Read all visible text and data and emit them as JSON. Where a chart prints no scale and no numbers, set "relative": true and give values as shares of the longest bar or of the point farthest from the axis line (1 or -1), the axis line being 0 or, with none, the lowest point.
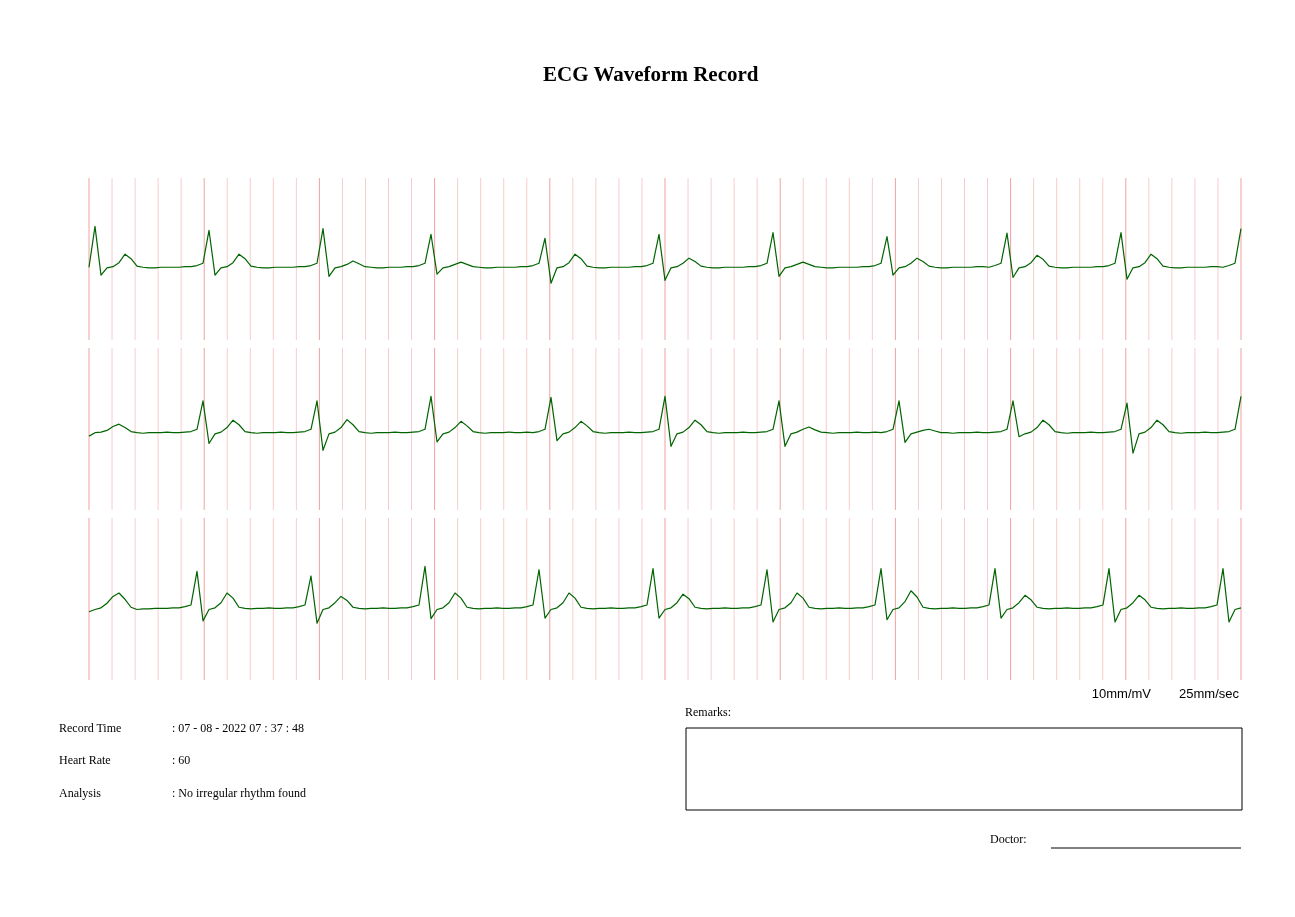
{
  "chart_data": [
    {
      "type": "line",
      "title": "ECG Waveform Record",
      "relative": true,
      "grid": "x",
      "categories": [
        null,
        null,
        null,
        null,
        null,
        null,
        null,
        null,
        null,
        null,
        null,
        null,
        null,
        null,
        null,
        null,
        null,
        null,
        null,
        null,
        null,
        null,
        null,
        null,
        null,
        null,
        null,
        null,
        null,
        null,
        null,
        null,
        null,
        null,
        null,
        null,
        null,
        null,
        null,
        null,
        null,
        null,
        null,
        null,
        null,
        null,
        null,
        null,
        null,
        null,
        null,
        null,
        null,
        null,
        null,
        null,
        null,
        null,
        null,
        null,
        null,
        null,
        null,
        null,
        null,
        null,
        null,
        null,
        null,
        null,
        null,
        null,
        null,
        null,
        null,
        null,
        null,
        null,
        null,
        null,
        null,
        null,
        null,
        null,
        null,
        null,
        null,
        null,
        null,
        null,
        null,
        null,
        null,
        null,
        null,
        null,
        null,
        null,
        null,
        null,
        null,
        null,
        null,
        null,
        null,
        null,
        null,
        null,
        null,
        null,
        null,
        null,
        null,
        null,
        null,
        null,
        null,
        null,
        null,
        null,
        null,
        null,
        null,
        null,
        null,
        null,
        null,
        null,
        null,
        null,
        null,
        null,
        null,
        null,
        null,
        null,
        null,
        null,
        null,
        null,
        null,
        null,
        null,
        null,
        null,
        null,
        null,
        null,
        null,
        null,
        null,
        null,
        null,
        null,
        null,
        null,
        null,
        null,
        null,
        null,
        null,
        null,
        null,
        null,
        null,
        null,
        null,
        null,
        null,
        null,
        null,
        null,
        null,
        null,
        null,
        null,
        null,
        null,
        null,
        null,
        null,
        null,
        null,
        null,
        null,
        null,
        null,
        null,
        null,
        null,
        null,
        null,
        null
      ],
      "series": [
        {
          "color": "#006400",
          "values": [
            0.28,
            1.0,
            0.14,
            0.27,
            0.29,
            0.36,
            0.51,
            0.43,
            0.3,
            0.28,
            0.27,
            0.27,
            0.28,
            0.28,
            0.28,
            0.28,
            0.29,
            0.29,
            0.31,
            0.35,
            0.93,
            0.14,
            0.27,
            0.29,
            0.36,
            0.51,
            0.43,
            0.3,
            0.28,
            0.27,
            0.27,
            0.28,
            0.28,
            0.28,
            0.28,
            0.29,
            0.29,
            0.31,
            0.35,
            0.96,
            0.12,
            0.27,
            0.29,
            0.33,
            0.39,
            0.34,
            0.29,
            0.28,
            0.27,
            0.27,
            0.28,
            0.28,
            0.28,
            0.29,
            0.29,
            0.31,
            0.35,
            0.86,
            0.16,
            0.27,
            0.29,
            0.33,
            0.37,
            0.33,
            0.29,
            0.28,
            0.27,
            0.27,
            0.28,
            0.28,
            0.28,
            0.28,
            0.29,
            0.29,
            0.31,
            0.35,
            0.79,
            0.0,
            0.27,
            0.29,
            0.36,
            0.51,
            0.43,
            0.3,
            0.28,
            0.27,
            0.27,
            0.28,
            0.28,
            0.28,
            0.28,
            0.29,
            0.29,
            0.31,
            0.35,
            0.86,
            0.05,
            0.27,
            0.29,
            0.35,
            0.44,
            0.38,
            0.3,
            0.28,
            0.27,
            0.27,
            0.28,
            0.28,
            0.28,
            0.28,
            0.29,
            0.29,
            0.31,
            0.35,
            0.89,
            0.12,
            0.27,
            0.29,
            0.33,
            0.37,
            0.33,
            0.29,
            0.28,
            0.27,
            0.27,
            0.28,
            0.28,
            0.28,
            0.28,
            0.29,
            0.29,
            0.31,
            0.35,
            0.82,
            0.14,
            0.27,
            0.29,
            0.35,
            0.44,
            0.38,
            0.3,
            0.28,
            0.27,
            0.27,
            0.28,
            0.28,
            0.28,
            0.28,
            0.29,
            0.29,
            0.28,
            0.31,
            0.35,
            0.88,
            0.1,
            0.27,
            0.29,
            0.36,
            0.49,
            0.42,
            0.3,
            0.28,
            0.27,
            0.27,
            0.28,
            0.28,
            0.28,
            0.28,
            0.29,
            0.29,
            0.31,
            0.35,
            0.89,
            0.07,
            0.27,
            0.29,
            0.36,
            0.51,
            0.43,
            0.3,
            0.28,
            0.27,
            0.27,
            0.28,
            0.28,
            0.28,
            0.28,
            0.29,
            0.29,
            0.28,
            0.31,
            0.35,
            0.96
          ]
        }
      ]
    },
    {
      "type": "line",
      "relative": true,
      "grid": "x",
      "categories": [
        null,
        null,
        null,
        null,
        null,
        null,
        null,
        null,
        null,
        null,
        null,
        null,
        null,
        null,
        null,
        null,
        null,
        null,
        null,
        null,
        null,
        null,
        null,
        null,
        null,
        null,
        null,
        null,
        null,
        null,
        null,
        null,
        null,
        null,
        null,
        null,
        null,
        null,
        null,
        null,
        null,
        null,
        null,
        null,
        null,
        null,
        null,
        null,
        null,
        null,
        null,
        null,
        null,
        null,
        null,
        null,
        null,
        null,
        null,
        null,
        null,
        null,
        null,
        null,
        null,
        null,
        null,
        null,
        null,
        null,
        null,
        null,
        null,
        null,
        null,
        null,
        null,
        null,
        null,
        null,
        null,
        null,
        null,
        null,
        null,
        null,
        null,
        null,
        null,
        null,
        null,
        null,
        null,
        null,
        null,
        null,
        null,
        null,
        null,
        null,
        null,
        null,
        null,
        null,
        null,
        null,
        null,
        null,
        null,
        null,
        null,
        null,
        null,
        null,
        null,
        null,
        null,
        null,
        null,
        null,
        null,
        null,
        null,
        null,
        null,
        null,
        null,
        null,
        null,
        null,
        null,
        null,
        null,
        null,
        null,
        null,
        null,
        null,
        null,
        null,
        null,
        null,
        null,
        null,
        null,
        null,
        null,
        null,
        null,
        null,
        null,
        null,
        null,
        null,
        null,
        null,
        null,
        null,
        null,
        null,
        null,
        null,
        null,
        null,
        null,
        null,
        null,
        null,
        null,
        null,
        null,
        null,
        null,
        null,
        null,
        null,
        null,
        null,
        null,
        null,
        null,
        null,
        null,
        null,
        null,
        null,
        null,
        null,
        null,
        null,
        null,
        null,
        null
      ],
      "series": [
        {
          "color": "#006400",
          "values": [
            0.3,
            0.36,
            0.37,
            0.4,
            0.47,
            0.51,
            0.45,
            0.38,
            0.36,
            0.35,
            0.36,
            0.36,
            0.36,
            0.37,
            0.36,
            0.36,
            0.37,
            0.38,
            0.42,
            0.92,
            0.17,
            0.34,
            0.37,
            0.45,
            0.58,
            0.5,
            0.38,
            0.36,
            0.35,
            0.36,
            0.36,
            0.36,
            0.37,
            0.36,
            0.36,
            0.37,
            0.38,
            0.42,
            0.92,
            0.05,
            0.34,
            0.37,
            0.45,
            0.59,
            0.5,
            0.38,
            0.36,
            0.35,
            0.36,
            0.36,
            0.36,
            0.37,
            0.36,
            0.36,
            0.37,
            0.38,
            0.42,
            1.0,
            0.2,
            0.34,
            0.37,
            0.45,
            0.56,
            0.48,
            0.38,
            0.36,
            0.35,
            0.36,
            0.36,
            0.36,
            0.37,
            0.36,
            0.36,
            0.37,
            0.36,
            0.38,
            0.42,
            0.98,
            0.22,
            0.34,
            0.37,
            0.45,
            0.56,
            0.48,
            0.38,
            0.36,
            0.35,
            0.36,
            0.36,
            0.36,
            0.37,
            0.36,
            0.36,
            0.37,
            0.38,
            0.42,
            1.0,
            0.12,
            0.34,
            0.37,
            0.45,
            0.58,
            0.5,
            0.38,
            0.36,
            0.35,
            0.36,
            0.36,
            0.36,
            0.37,
            0.36,
            0.36,
            0.37,
            0.38,
            0.42,
            0.92,
            0.12,
            0.34,
            0.37,
            0.42,
            0.46,
            0.41,
            0.37,
            0.36,
            0.35,
            0.36,
            0.36,
            0.36,
            0.37,
            0.36,
            0.36,
            0.37,
            0.36,
            0.38,
            0.42,
            0.92,
            0.19,
            0.34,
            0.37,
            0.4,
            0.42,
            0.39,
            0.36,
            0.36,
            0.35,
            0.36,
            0.36,
            0.36,
            0.37,
            0.36,
            0.36,
            0.37,
            0.38,
            0.42,
            0.92,
            0.29,
            0.34,
            0.37,
            0.45,
            0.58,
            0.5,
            0.38,
            0.36,
            0.35,
            0.36,
            0.36,
            0.36,
            0.37,
            0.36,
            0.36,
            0.37,
            0.38,
            0.42,
            0.88,
            0.0,
            0.34,
            0.37,
            0.45,
            0.58,
            0.5,
            0.38,
            0.36,
            0.35,
            0.36,
            0.36,
            0.36,
            0.37,
            0.36,
            0.36,
            0.37,
            0.38,
            0.42,
            1.0
          ]
        }
      ]
    },
    {
      "type": "line",
      "relative": true,
      "grid": "x",
      "annotations": [
        "10mm/mV",
        "25mm/sec",
        "Record Time",
        ": 07 - 08 - 2022   07 : 37 : 48",
        "Heart Rate",
        ": 60",
        "Analysis",
        ": No irregular rhythm found",
        "Remarks:",
        "Doctor:"
      ],
      "categories": [
        null,
        null,
        null,
        null,
        null,
        null,
        null,
        null,
        null,
        null,
        null,
        null,
        null,
        null,
        null,
        null,
        null,
        null,
        null,
        null,
        null,
        null,
        null,
        null,
        null,
        null,
        null,
        null,
        null,
        null,
        null,
        null,
        null,
        null,
        null,
        null,
        null,
        null,
        null,
        null,
        null,
        null,
        null,
        null,
        null,
        null,
        null,
        null,
        null,
        null,
        null,
        null,
        null,
        null,
        null,
        null,
        null,
        null,
        null,
        null,
        null,
        null,
        null,
        null,
        null,
        null,
        null,
        null,
        null,
        null,
        null,
        null,
        null,
        null,
        null,
        null,
        null,
        null,
        null,
        null,
        null,
        null,
        null,
        null,
        null,
        null,
        null,
        null,
        null,
        null,
        null,
        null,
        null,
        null,
        null,
        null,
        null,
        null,
        null,
        null,
        null,
        null,
        null,
        null,
        null,
        null,
        null,
        null,
        null,
        null,
        null,
        null,
        null,
        null,
        null,
        null,
        null,
        null,
        null,
        null,
        null,
        null,
        null,
        null,
        null,
        null,
        null,
        null,
        null,
        null,
        null,
        null,
        null,
        null,
        null,
        null,
        null,
        null,
        null,
        null,
        null,
        null,
        null,
        null,
        null,
        null,
        null,
        null,
        null,
        null,
        null,
        null,
        null,
        null,
        null,
        null,
        null,
        null,
        null,
        null,
        null,
        null,
        null,
        null,
        null,
        null,
        null,
        null,
        null,
        null,
        null,
        null,
        null,
        null,
        null,
        null,
        null,
        null,
        null,
        null,
        null,
        null,
        null,
        null,
        null,
        null,
        null,
        null,
        null,
        null,
        null,
        null,
        null
      ],
      "series": [
        {
          "color": "#006400",
          "values": [
            0.2,
            0.24,
            0.27,
            0.35,
            0.47,
            0.53,
            0.42,
            0.28,
            0.24,
            0.25,
            0.25,
            0.26,
            0.26,
            0.26,
            0.27,
            0.27,
            0.29,
            0.32,
            0.91,
            0.04,
            0.24,
            0.27,
            0.36,
            0.53,
            0.44,
            0.28,
            0.26,
            0.25,
            0.26,
            0.26,
            0.27,
            0.26,
            0.26,
            0.27,
            0.27,
            0.29,
            0.32,
            0.83,
            0.0,
            0.24,
            0.27,
            0.36,
            0.47,
            0.4,
            0.28,
            0.26,
            0.25,
            0.26,
            0.26,
            0.27,
            0.26,
            0.26,
            0.27,
            0.27,
            0.29,
            0.32,
            1.0,
            0.08,
            0.24,
            0.27,
            0.36,
            0.53,
            0.44,
            0.28,
            0.26,
            0.25,
            0.26,
            0.26,
            0.27,
            0.26,
            0.26,
            0.27,
            0.27,
            0.29,
            0.32,
            0.94,
            0.09,
            0.24,
            0.27,
            0.36,
            0.53,
            0.44,
            0.28,
            0.26,
            0.25,
            0.26,
            0.26,
            0.27,
            0.26,
            0.26,
            0.27,
            0.27,
            0.29,
            0.32,
            0.96,
            0.09,
            0.24,
            0.27,
            0.36,
            0.51,
            0.43,
            0.28,
            0.26,
            0.25,
            0.26,
            0.26,
            0.27,
            0.26,
            0.26,
            0.27,
            0.27,
            0.29,
            0.32,
            0.94,
            0.02,
            0.24,
            0.27,
            0.36,
            0.53,
            0.44,
            0.28,
            0.26,
            0.25,
            0.26,
            0.26,
            0.27,
            0.26,
            0.26,
            0.27,
            0.27,
            0.29,
            0.32,
            0.96,
            0.06,
            0.24,
            0.27,
            0.38,
            0.57,
            0.46,
            0.28,
            0.26,
            0.25,
            0.26,
            0.26,
            0.27,
            0.26,
            0.26,
            0.27,
            0.27,
            0.29,
            0.32,
            0.96,
            0.09,
            0.24,
            0.27,
            0.36,
            0.49,
            0.41,
            0.28,
            0.26,
            0.25,
            0.26,
            0.26,
            0.27,
            0.26,
            0.26,
            0.27,
            0.27,
            0.29,
            0.32,
            0.96,
            0.02,
            0.24,
            0.27,
            0.36,
            0.49,
            0.41,
            0.28,
            0.26,
            0.25,
            0.26,
            0.26,
            0.27,
            0.26,
            0.26,
            0.27,
            0.27,
            0.29,
            0.32,
            0.96,
            0.02,
            0.24,
            0.27
          ]
        }
      ]
    }
  ]
}
